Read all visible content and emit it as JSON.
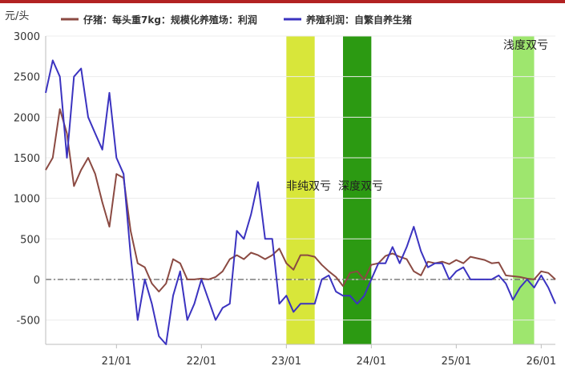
{
  "chart_data": {
    "type": "line",
    "yunit": "元/头",
    "ylim": [
      -800,
      3000
    ],
    "yticks": [
      3000,
      2500,
      2000,
      1500,
      1000,
      500,
      0,
      -500
    ],
    "ytick_labels": [
      "3000",
      "2500",
      "2000",
      "1500",
      "1000",
      "500",
      "0",
      "-500"
    ],
    "xlim": [
      "2020-03",
      "2026-03"
    ],
    "xticks": [
      "2021-01",
      "2022-01",
      "2023-01",
      "2024-01",
      "2025-01",
      "2026-01"
    ],
    "xtick_labels": [
      "21/01",
      "22/01",
      "23/01",
      "24/01",
      "25/01",
      "26/01"
    ],
    "grid": true,
    "legend_position": "top",
    "colors": {
      "series1": "#8b4a42",
      "series2": "#3b33c0",
      "zero_line": "#707070",
      "band_light_yellow": "#d8e63a",
      "band_dark_green": "#2c9a12",
      "band_light_green": "#9ee66e"
    },
    "series": [
      {
        "name": "仔猪：每头重7kg：规模化养殖场：利润",
        "x": [
          "2020-03",
          "2020-04",
          "2020-05",
          "2020-06",
          "2020-07",
          "2020-08",
          "2020-09",
          "2020-10",
          "2020-11",
          "2020-12",
          "2021-01",
          "2021-02",
          "2021-03",
          "2021-04",
          "2021-05",
          "2021-06",
          "2021-07",
          "2021-08",
          "2021-09",
          "2021-10",
          "2021-11",
          "2021-12",
          "2022-01",
          "2022-02",
          "2022-03",
          "2022-04",
          "2022-05",
          "2022-06",
          "2022-07",
          "2022-08",
          "2022-09",
          "2022-10",
          "2022-11",
          "2022-12",
          "2023-01",
          "2023-02",
          "2023-03",
          "2023-04",
          "2023-05",
          "2023-06",
          "2023-07",
          "2023-08",
          "2023-09",
          "2023-10",
          "2023-11",
          "2023-12",
          "2024-01",
          "2024-02",
          "2024-03",
          "2024-04",
          "2024-05",
          "2024-06",
          "2024-07",
          "2024-08",
          "2024-09",
          "2024-10",
          "2024-11",
          "2024-12",
          "2025-01",
          "2025-02",
          "2025-03",
          "2025-04",
          "2025-05",
          "2025-06",
          "2025-07",
          "2025-08",
          "2025-09",
          "2025-10",
          "2025-11",
          "2025-12",
          "2026-01",
          "2026-02",
          "2026-03"
        ],
        "y": [
          1350,
          1500,
          2100,
          1800,
          1150,
          1350,
          1500,
          1300,
          950,
          650,
          1300,
          1250,
          600,
          200,
          150,
          -50,
          -150,
          -50,
          250,
          200,
          0,
          0,
          10,
          0,
          30,
          100,
          250,
          300,
          250,
          330,
          300,
          250,
          300,
          380,
          200,
          120,
          300,
          300,
          280,
          180,
          100,
          30,
          -80,
          80,
          100,
          0,
          180,
          200,
          290,
          320,
          280,
          250,
          100,
          50,
          220,
          200,
          220,
          190,
          240,
          200,
          280,
          260,
          240,
          200,
          210,
          50,
          40,
          30,
          10,
          0,
          100,
          80,
          0
        ]
      },
      {
        "name": "养殖利润：自繁自养生猪",
        "x": [
          "2020-03",
          "2020-04",
          "2020-05",
          "2020-06",
          "2020-07",
          "2020-08",
          "2020-09",
          "2020-10",
          "2020-11",
          "2020-12",
          "2021-01",
          "2021-02",
          "2021-03",
          "2021-04",
          "2021-05",
          "2021-06",
          "2021-07",
          "2021-08",
          "2021-09",
          "2021-10",
          "2021-11",
          "2021-12",
          "2022-01",
          "2022-02",
          "2022-03",
          "2022-04",
          "2022-05",
          "2022-06",
          "2022-07",
          "2022-08",
          "2022-09",
          "2022-10",
          "2022-11",
          "2022-12",
          "2023-01",
          "2023-02",
          "2023-03",
          "2023-04",
          "2023-05",
          "2023-06",
          "2023-07",
          "2023-08",
          "2023-09",
          "2023-10",
          "2023-11",
          "2023-12",
          "2024-01",
          "2024-02",
          "2024-03",
          "2024-04",
          "2024-05",
          "2024-06",
          "2024-07",
          "2024-08",
          "2024-09",
          "2024-10",
          "2024-11",
          "2024-12",
          "2025-01",
          "2025-02",
          "2025-03",
          "2025-04",
          "2025-05",
          "2025-06",
          "2025-07",
          "2025-08",
          "2025-09",
          "2025-10",
          "2025-11",
          "2025-12",
          "2026-01",
          "2026-02",
          "2026-03"
        ],
        "y": [
          2300,
          2700,
          2500,
          1500,
          2500,
          2600,
          2000,
          1800,
          1600,
          2300,
          1500,
          1300,
          300,
          -500,
          0,
          -300,
          -700,
          -800,
          -200,
          100,
          -500,
          -300,
          0,
          -250,
          -500,
          -350,
          -300,
          600,
          500,
          800,
          1200,
          500,
          500,
          -300,
          -200,
          -400,
          -300,
          -300,
          -300,
          0,
          50,
          -150,
          -200,
          -200,
          -300,
          -200,
          0,
          200,
          200,
          400,
          200,
          400,
          650,
          350,
          150,
          200,
          200,
          0,
          100,
          150,
          0,
          0,
          0,
          0,
          50,
          -50,
          -250,
          -100,
          0,
          -100,
          50,
          -100,
          -300
        ]
      }
    ],
    "annotations": [
      {
        "label": "非纯双亏",
        "start": "2023-01",
        "end": "2023-05"
      },
      {
        "label": "深度双亏",
        "start": "2023-09",
        "end": "2024-01"
      },
      {
        "label": "浅度双亏",
        "start": "2025-09",
        "end": "2025-12"
      }
    ]
  }
}
